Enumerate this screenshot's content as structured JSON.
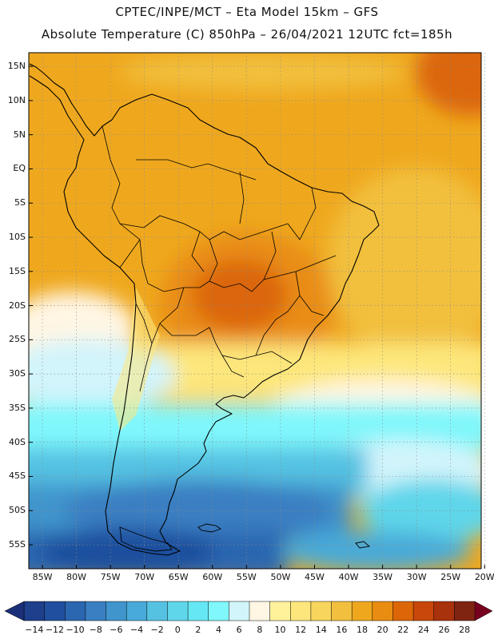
{
  "header": {
    "line1": "CPTEC/INPE/MCT –  Eta Model 15km – GFS",
    "line2": "Absolute Temperature (C) 850hPa – 26/04/2021 12UTC fct=185h"
  },
  "map": {
    "region": "South America",
    "lat_labels": [
      "15N",
      "10N",
      "5N",
      "EQ",
      "5S",
      "10S",
      "15S",
      "20S",
      "25S",
      "30S",
      "35S",
      "40S",
      "45S",
      "50S",
      "55S"
    ],
    "lat_values": [
      15,
      10,
      5,
      0,
      -5,
      -10,
      -15,
      -20,
      -25,
      -30,
      -35,
      -40,
      -45,
      -50,
      -55
    ],
    "lon_labels": [
      "85W",
      "80W",
      "75W",
      "70W",
      "65W",
      "60W",
      "55W",
      "50W",
      "45W",
      "40W",
      "35W",
      "30W",
      "25W",
      "20W"
    ],
    "lon_values": [
      -85,
      -80,
      -75,
      -70,
      -65,
      -60,
      -55,
      -50,
      -45,
      -40,
      -35,
      -30,
      -25,
      -20
    ]
  },
  "colorbar": {
    "labels": [
      "-14",
      "-12",
      "-10",
      "-8",
      "-6",
      "-4",
      "-2",
      "0",
      "2",
      "4",
      "6",
      "8",
      "10",
      "12",
      "14",
      "16",
      "18",
      "20",
      "22",
      "24",
      "26",
      "28"
    ],
    "colors": [
      "#1e3f8c",
      "#1f4f9e",
      "#2b66b0",
      "#3a7fc2",
      "#3f95cc",
      "#48aad8",
      "#55c2e2",
      "#5fd6ea",
      "#66e8f4",
      "#7ff7fb",
      "#d2f4fb",
      "#fff6e4",
      "#fff29a",
      "#fde77c",
      "#f8d55c",
      "#f2c03e",
      "#efa81e",
      "#e98d12",
      "#dc6608",
      "#c9470a",
      "#a8320c",
      "#802412"
    ],
    "low_cap_color": "#1a2f78",
    "high_cap_color": "#78001f"
  }
}
